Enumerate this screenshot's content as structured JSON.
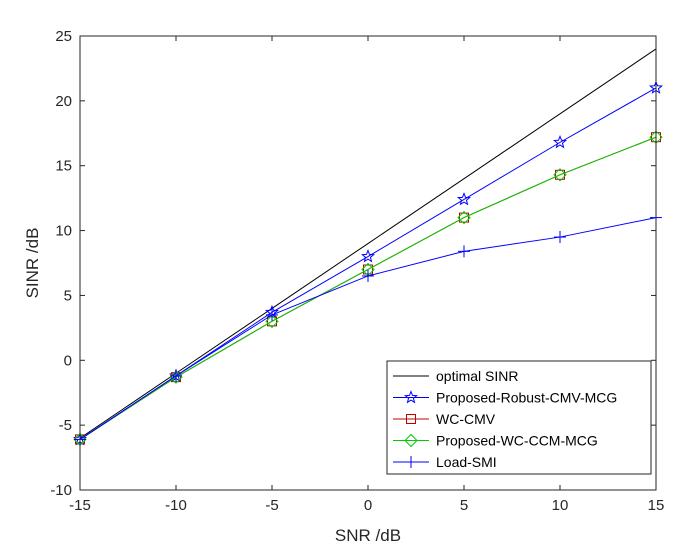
{
  "chart_data": {
    "type": "line",
    "title": "",
    "xlabel": "SNR /dB",
    "ylabel": "SINR /dB",
    "xlim": [
      -15,
      15
    ],
    "ylim": [
      -10,
      25
    ],
    "xticks": [
      -15,
      -10,
      -5,
      0,
      5,
      10,
      15
    ],
    "yticks": [
      -10,
      -5,
      0,
      5,
      10,
      15,
      20,
      25
    ],
    "xtick_labels": [
      "-15",
      "-10",
      "-5",
      "0",
      "5",
      "10",
      "15"
    ],
    "ytick_labels": [
      "-10",
      "-5",
      "0",
      "5",
      "10",
      "15",
      "20",
      "25"
    ],
    "grid": false,
    "legend_position": "bottom-right",
    "x": [
      -15,
      -10,
      -5,
      0,
      5,
      10,
      15
    ],
    "series": [
      {
        "name": "optimal SINR",
        "color": "#000000",
        "marker": "none",
        "values": [
          -6.0,
          -1.0,
          4.0,
          9.0,
          14.0,
          19.0,
          24.0
        ]
      },
      {
        "name": "Proposed-Robust-CMV-MCG",
        "color": "#0000ff",
        "marker": "star",
        "values": [
          -6.1,
          -1.2,
          3.7,
          8.0,
          12.4,
          16.8,
          21.0
        ]
      },
      {
        "name": "WC-CMV",
        "color": "#c00000",
        "marker": "square",
        "values": [
          -6.1,
          -1.3,
          3.0,
          7.0,
          11.0,
          14.3,
          17.2
        ]
      },
      {
        "name": "Proposed-WC-CCM-MCG",
        "color": "#00cc00",
        "marker": "diamond",
        "values": [
          -6.1,
          -1.3,
          3.0,
          7.0,
          11.0,
          14.3,
          17.2
        ]
      },
      {
        "name": "Load-SMI",
        "color": "#0000ff",
        "marker": "plus",
        "values": [
          -6.1,
          -1.2,
          3.5,
          6.5,
          8.4,
          9.5,
          11.0
        ]
      }
    ]
  }
}
